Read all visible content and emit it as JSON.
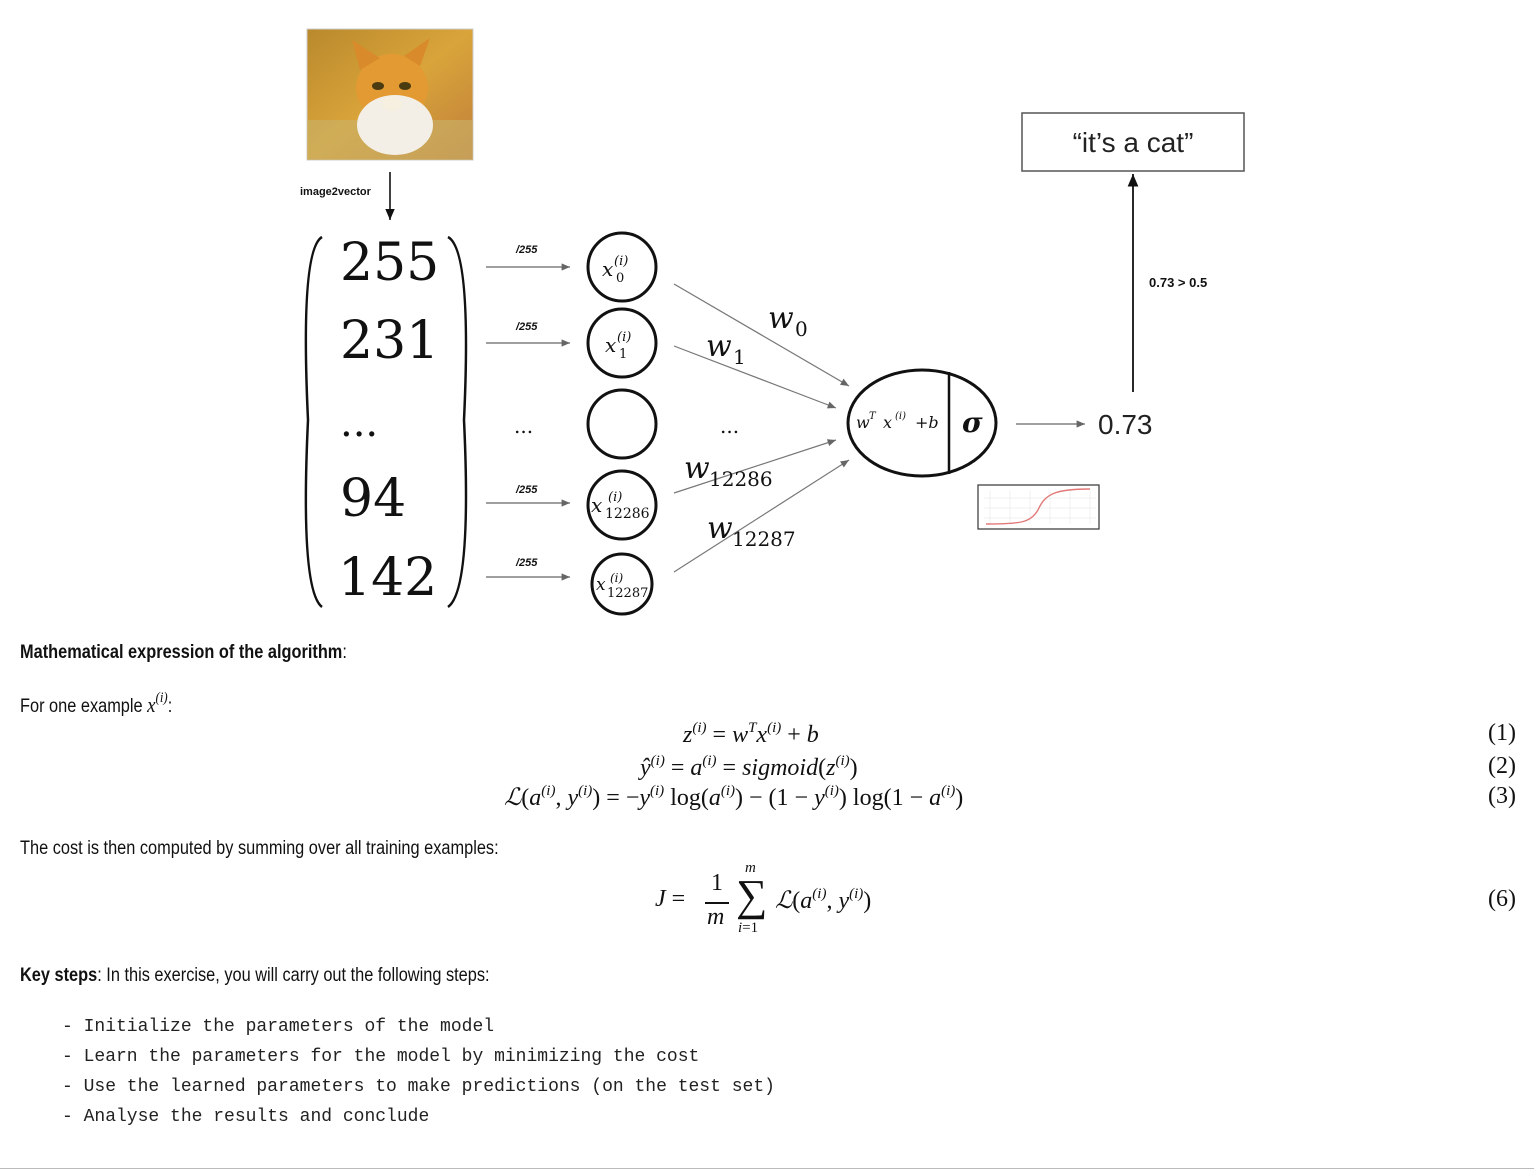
{
  "diagram": {
    "image_label": "image2vector",
    "vector_values": [
      "255",
      "231",
      "...",
      "94",
      "142"
    ],
    "divide_labels": [
      "/255",
      "/255",
      "/255",
      "/255"
    ],
    "dots": "...",
    "node_labels": [
      "x",
      "x",
      "",
      "x",
      "x"
    ],
    "node_subscripts": [
      "0",
      "1",
      "",
      "12286",
      "12287"
    ],
    "node_superscript": "(i)",
    "weight_symbol": "w",
    "weight_subscripts": [
      "0",
      "1",
      "12286",
      "12287"
    ],
    "weight_dots": "...",
    "neuron_linear": "w",
    "neuron_linear_sup": "T",
    "neuron_linear_x": "x",
    "neuron_linear_x_sup": "(i)",
    "neuron_linear_rest": "+b",
    "neuron_activation": "σ",
    "output_value": "0.73",
    "threshold_label": "0.73 > 0.5",
    "prediction_text": "“it’s a cat”",
    "photo_subject": "cat-photo"
  },
  "text": {
    "math_heading": "Mathematical expression of the algorithm",
    "math_heading_tail": ":",
    "example_lead": "For one example ",
    "example_var": "x",
    "example_sup": "(i)",
    "example_tail": ":",
    "cost_intro": "The cost is then computed by summing over all training examples:",
    "key_steps_label": "Key steps",
    "key_steps_rest": ": In this exercise, you will carry out the following steps:"
  },
  "equations": {
    "eq1": "z(i) = wT x(i) + b",
    "eq2": "ŷ(i) = a(i) = sigmoid(z(i))",
    "eq3": "ℒ(a(i), y(i)) = −y(i) log(a(i)) − (1 − y(i)) log(1 − a(i))",
    "eq6": "J = 1/m Σ(i=1..m) ℒ(a(i), y(i))",
    "numbers": [
      "(1)",
      "(2)",
      "(3)",
      "(6)"
    ]
  },
  "steps": [
    "- Initialize the parameters of the model",
    "- Learn the parameters for the model by minimizing the cost",
    "- Use the learned parameters to make predictions (on the test set)",
    "- Analyse the results and conclude"
  ]
}
